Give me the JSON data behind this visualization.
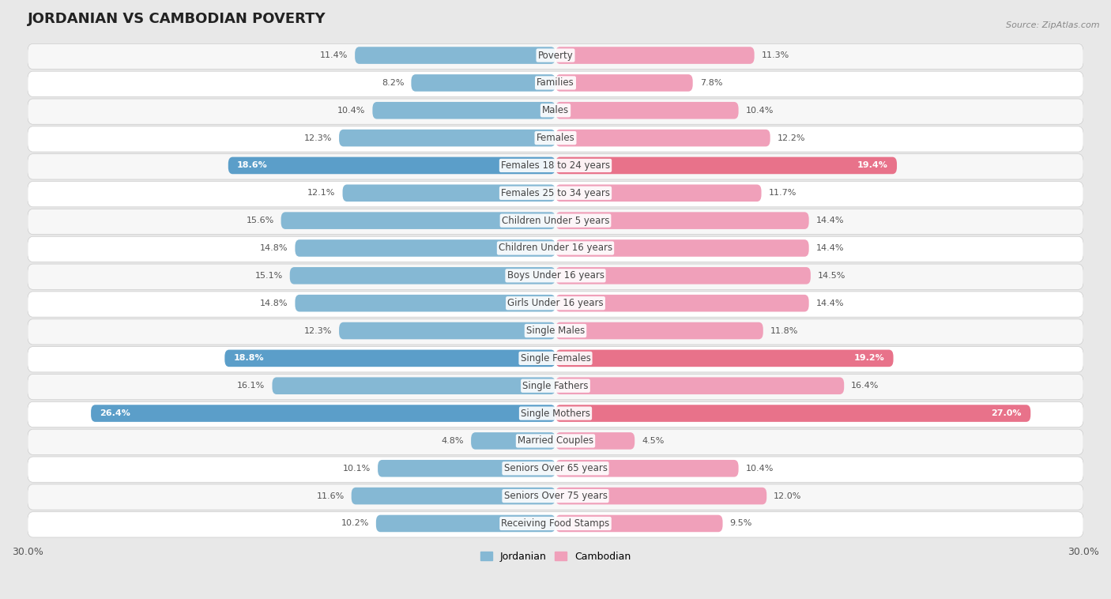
{
  "title": "JORDANIAN VS CAMBODIAN POVERTY",
  "source": "Source: ZipAtlas.com",
  "categories": [
    "Poverty",
    "Families",
    "Males",
    "Females",
    "Females 18 to 24 years",
    "Females 25 to 34 years",
    "Children Under 5 years",
    "Children Under 16 years",
    "Boys Under 16 years",
    "Girls Under 16 years",
    "Single Males",
    "Single Females",
    "Single Fathers",
    "Single Mothers",
    "Married Couples",
    "Seniors Over 65 years",
    "Seniors Over 75 years",
    "Receiving Food Stamps"
  ],
  "jordanian": [
    11.4,
    8.2,
    10.4,
    12.3,
    18.6,
    12.1,
    15.6,
    14.8,
    15.1,
    14.8,
    12.3,
    18.8,
    16.1,
    26.4,
    4.8,
    10.1,
    11.6,
    10.2
  ],
  "cambodian": [
    11.3,
    7.8,
    10.4,
    12.2,
    19.4,
    11.7,
    14.4,
    14.4,
    14.5,
    14.4,
    11.8,
    19.2,
    16.4,
    27.0,
    4.5,
    10.4,
    12.0,
    9.5
  ],
  "jordanian_color_normal": "#85b8d4",
  "cambodian_color_normal": "#f0a0ba",
  "jordanian_color_highlight": "#5b9ec9",
  "cambodian_color_highlight": "#e8728a",
  "row_bg_odd": "#f7f7f7",
  "row_bg_even": "#ffffff",
  "bg_color": "#e8e8e8",
  "highlight_rows": [
    4,
    11,
    13
  ],
  "axis_max": 30.0,
  "legend_jordanian": "Jordanian",
  "legend_cambodian": "Cambodian",
  "value_color_normal": "#555555",
  "value_color_highlight": "#ffffff",
  "label_color": "#444444",
  "title_color": "#222222",
  "source_color": "#888888"
}
